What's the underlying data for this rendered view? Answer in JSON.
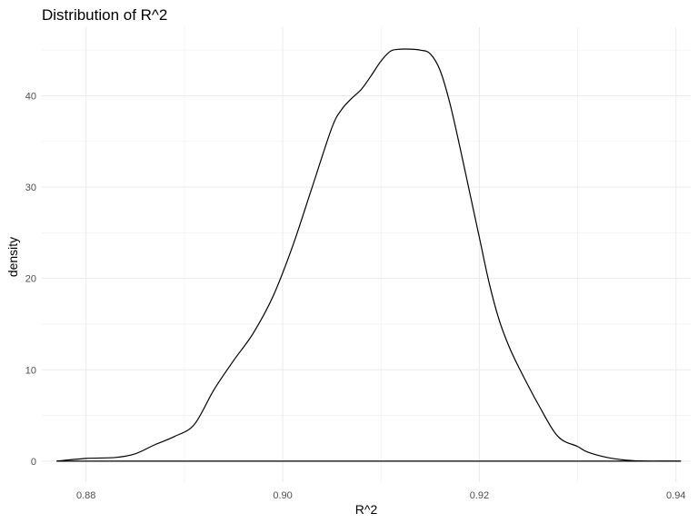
{
  "chart_data": {
    "type": "area",
    "title": "Distribution of R^2",
    "xlabel": "R^2",
    "ylabel": "density",
    "xlim": [
      0.8755,
      0.9415
    ],
    "ylim": [
      -2.3,
      47.5
    ],
    "x_ticks": [
      0.88,
      0.9,
      0.92,
      0.94
    ],
    "x_tick_labels": [
      "0.88",
      "0.90",
      "0.92",
      "0.94"
    ],
    "y_ticks": [
      0,
      10,
      20,
      30,
      40
    ],
    "y_tick_labels": [
      "0",
      "10",
      "20",
      "30",
      "40"
    ],
    "grid": true,
    "legend": "none",
    "line_color": "#000000",
    "fill": "none",
    "series": [
      {
        "x": [
          0.877,
          0.88,
          0.883,
          0.885,
          0.887,
          0.889,
          0.891,
          0.893,
          0.895,
          0.897,
          0.899,
          0.901,
          0.903,
          0.905,
          0.906,
          0.907,
          0.908,
          0.909,
          0.91,
          0.911,
          0.912,
          0.913,
          0.914,
          0.915,
          0.916,
          0.917,
          0.918,
          0.919,
          0.92,
          0.921,
          0.922,
          0.923,
          0.924,
          0.926,
          0.928,
          0.93,
          0.931,
          0.933,
          0.935,
          0.937,
          0.939,
          0.9405
        ],
        "y": [
          0.0,
          0.3,
          0.4,
          0.8,
          1.8,
          2.7,
          4.0,
          7.8,
          11.0,
          14.0,
          18.0,
          23.5,
          30.0,
          36.5,
          38.5,
          39.7,
          40.7,
          42.2,
          43.8,
          44.9,
          45.1,
          45.1,
          45.0,
          44.6,
          42.8,
          39.2,
          34.5,
          29.5,
          24.5,
          19.5,
          15.5,
          12.6,
          10.3,
          6.2,
          2.7,
          1.6,
          1.0,
          0.4,
          0.1,
          0.0,
          0.0,
          0.0
        ]
      }
    ]
  }
}
